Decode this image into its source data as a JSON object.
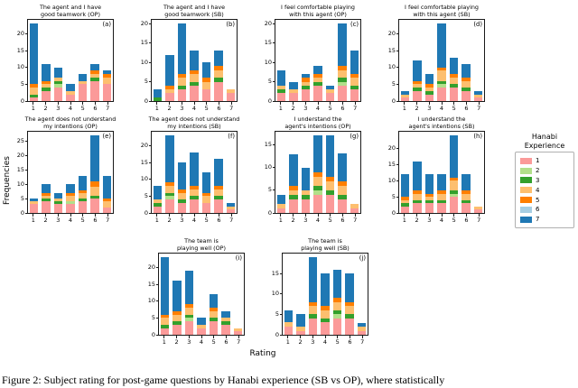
{
  "caption": "Figure 2: Subject rating for post-game questions by Hanabi experience (SB vs OP), where statistically",
  "legend": {
    "title": "Hanabi Experience",
    "entries": [
      {
        "label": "1",
        "color": "#fb9a99"
      },
      {
        "label": "2",
        "color": "#b2df8a"
      },
      {
        "label": "3",
        "color": "#33a02c"
      },
      {
        "label": "4",
        "color": "#fdbf6f"
      },
      {
        "label": "5",
        "color": "#ff7f00"
      },
      {
        "label": "6",
        "color": "#a6cee3"
      },
      {
        "label": "7",
        "color": "#1f78b4"
      }
    ]
  },
  "chart_data": {
    "type": "bar",
    "stacked": true,
    "xlabel": "Rating",
    "ylabel": "Frequencies",
    "legend_title": "Hanabi Experience",
    "legend_position": "right",
    "x_categories": [
      "1",
      "2",
      "3",
      "4",
      "5",
      "6",
      "7"
    ],
    "subplots": [
      {
        "panel": "(a)",
        "row": 1,
        "title": "The agent and I have\ngood teamwork (OP)",
        "series": [
          {
            "name": "1",
            "values": [
              1,
              3,
              4,
              2,
              5,
              6,
              5
            ]
          },
          {
            "name": "2",
            "values": [
              0,
              0,
              1,
              0,
              0,
              0,
              0
            ]
          },
          {
            "name": "3",
            "values": [
              1,
              1,
              1,
              0,
              0,
              1,
              0
            ]
          },
          {
            "name": "4",
            "values": [
              2,
              1,
              1,
              1,
              1,
              1,
              2
            ]
          },
          {
            "name": "5",
            "values": [
              1,
              1,
              0,
              0,
              0,
              1,
              1
            ]
          },
          {
            "name": "6",
            "values": [
              0,
              0,
              0,
              0,
              0,
              0,
              0
            ]
          },
          {
            "name": "7",
            "values": [
              18,
              5,
              3,
              2,
              2,
              2,
              1
            ]
          }
        ]
      },
      {
        "panel": "(b)",
        "row": 1,
        "title": "The agent and I have\ngood teamwork (SB)",
        "series": [
          {
            "name": "1",
            "values": [
              0,
              2,
              3,
              4,
              3,
              5,
              2
            ]
          },
          {
            "name": "2",
            "values": [
              0,
              0,
              0,
              0,
              0,
              0,
              0
            ]
          },
          {
            "name": "3",
            "values": [
              1,
              0,
              1,
              1,
              0,
              1,
              0
            ]
          },
          {
            "name": "4",
            "values": [
              0,
              1,
              2,
              2,
              2,
              2,
              1
            ]
          },
          {
            "name": "5",
            "values": [
              0,
              1,
              1,
              1,
              1,
              1,
              0
            ]
          },
          {
            "name": "6",
            "values": [
              0,
              0,
              0,
              0,
              0,
              0,
              0
            ]
          },
          {
            "name": "7",
            "values": [
              2,
              8,
              13,
              5,
              4,
              4,
              0
            ]
          }
        ]
      },
      {
        "panel": "(c)",
        "row": 1,
        "title": "I feel comfortable playing\nwith this agent (OP)",
        "series": [
          {
            "name": "1",
            "values": [
              2,
              2,
              3,
              4,
              2,
              4,
              3
            ]
          },
          {
            "name": "2",
            "values": [
              0,
              0,
              0,
              0,
              0,
              1,
              0
            ]
          },
          {
            "name": "3",
            "values": [
              1,
              0,
              1,
              1,
              0,
              1,
              1
            ]
          },
          {
            "name": "4",
            "values": [
              1,
              1,
              1,
              1,
              1,
              2,
              2
            ]
          },
          {
            "name": "5",
            "values": [
              0,
              0,
              1,
              1,
              0,
              1,
              1
            ]
          },
          {
            "name": "6",
            "values": [
              0,
              0,
              0,
              0,
              0,
              0,
              0
            ]
          },
          {
            "name": "7",
            "values": [
              4,
              2,
              1,
              2,
              1,
              11,
              6
            ]
          }
        ]
      },
      {
        "panel": "(d)",
        "row": 1,
        "title": "I feel comfortable playing\nwith this agent (SB)",
        "series": [
          {
            "name": "1",
            "values": [
              1,
              3,
              2,
              4,
              4,
              3,
              1
            ]
          },
          {
            "name": "2",
            "values": [
              0,
              0,
              0,
              1,
              0,
              0,
              0
            ]
          },
          {
            "name": "3",
            "values": [
              0,
              1,
              1,
              1,
              1,
              1,
              0
            ]
          },
          {
            "name": "4",
            "values": [
              1,
              1,
              1,
              3,
              2,
              2,
              1
            ]
          },
          {
            "name": "5",
            "values": [
              0,
              1,
              1,
              1,
              1,
              1,
              0
            ]
          },
          {
            "name": "6",
            "values": [
              0,
              0,
              0,
              0,
              0,
              0,
              0
            ]
          },
          {
            "name": "7",
            "values": [
              1,
              6,
              3,
              13,
              5,
              4,
              1
            ]
          }
        ]
      },
      {
        "panel": "(e)",
        "row": 2,
        "title": "The agent does not understand\nmy intentions (OP)",
        "series": [
          {
            "name": "1",
            "values": [
              3,
              4,
              3,
              3,
              4,
              5,
              2
            ]
          },
          {
            "name": "2",
            "values": [
              0,
              0,
              0,
              1,
              0,
              0,
              0
            ]
          },
          {
            "name": "3",
            "values": [
              0,
              1,
              1,
              0,
              1,
              1,
              0
            ]
          },
          {
            "name": "4",
            "values": [
              1,
              1,
              1,
              2,
              2,
              3,
              2
            ]
          },
          {
            "name": "5",
            "values": [
              0,
              1,
              0,
              1,
              1,
              2,
              1
            ]
          },
          {
            "name": "6",
            "values": [
              0,
              0,
              0,
              0,
              0,
              0,
              0
            ]
          },
          {
            "name": "7",
            "values": [
              1,
              3,
              2,
              3,
              5,
              16,
              8
            ]
          }
        ]
      },
      {
        "panel": "(f)",
        "row": 2,
        "title": "The agent does not understand\nmy intentions (SB)",
        "series": [
          {
            "name": "1",
            "values": [
              2,
              4,
              3,
              4,
              3,
              4,
              1
            ]
          },
          {
            "name": "2",
            "values": [
              0,
              1,
              0,
              0,
              0,
              0,
              0
            ]
          },
          {
            "name": "3",
            "values": [
              1,
              1,
              1,
              1,
              0,
              1,
              0
            ]
          },
          {
            "name": "4",
            "values": [
              1,
              2,
              2,
              2,
              2,
              2,
              1
            ]
          },
          {
            "name": "5",
            "values": [
              0,
              1,
              1,
              1,
              1,
              1,
              0
            ]
          },
          {
            "name": "6",
            "values": [
              0,
              0,
              0,
              0,
              0,
              0,
              0
            ]
          },
          {
            "name": "7",
            "values": [
              4,
              14,
              8,
              10,
              6,
              8,
              1
            ]
          }
        ]
      },
      {
        "panel": "(g)",
        "row": 2,
        "title": "I understand the\nagent's intentions (OP)",
        "series": [
          {
            "name": "1",
            "values": [
              1,
              3,
              3,
              4,
              4,
              3,
              1
            ]
          },
          {
            "name": "2",
            "values": [
              0,
              0,
              0,
              1,
              0,
              0,
              0
            ]
          },
          {
            "name": "3",
            "values": [
              0,
              1,
              1,
              1,
              1,
              1,
              0
            ]
          },
          {
            "name": "4",
            "values": [
              1,
              1,
              1,
              2,
              2,
              2,
              1
            ]
          },
          {
            "name": "5",
            "values": [
              0,
              1,
              0,
              1,
              1,
              1,
              0
            ]
          },
          {
            "name": "6",
            "values": [
              0,
              0,
              0,
              0,
              0,
              0,
              0
            ]
          },
          {
            "name": "7",
            "values": [
              2,
              7,
              5,
              8,
              9,
              6,
              0
            ]
          }
        ]
      },
      {
        "panel": "(h)",
        "row": 2,
        "title": "I understand the\nagent's intentions (SB)",
        "series": [
          {
            "name": "1",
            "values": [
              2,
              3,
              3,
              3,
              5,
              3,
              1
            ]
          },
          {
            "name": "2",
            "values": [
              0,
              0,
              0,
              0,
              1,
              0,
              0
            ]
          },
          {
            "name": "3",
            "values": [
              1,
              1,
              1,
              1,
              1,
              1,
              0
            ]
          },
          {
            "name": "4",
            "values": [
              1,
              2,
              1,
              2,
              3,
              2,
              1
            ]
          },
          {
            "name": "5",
            "values": [
              1,
              1,
              1,
              1,
              1,
              1,
              0
            ]
          },
          {
            "name": "6",
            "values": [
              0,
              0,
              0,
              0,
              0,
              0,
              0
            ]
          },
          {
            "name": "7",
            "values": [
              7,
              9,
              6,
              5,
              13,
              5,
              0
            ]
          }
        ]
      },
      {
        "panel": "(i)",
        "row": 3,
        "title": "The team is\nplaying well (OP)",
        "series": [
          {
            "name": "1",
            "values": [
              2,
              3,
              4,
              2,
              4,
              3,
              1
            ]
          },
          {
            "name": "2",
            "values": [
              0,
              0,
              1,
              0,
              0,
              0,
              0
            ]
          },
          {
            "name": "3",
            "values": [
              1,
              1,
              1,
              0,
              1,
              1,
              0
            ]
          },
          {
            "name": "4",
            "values": [
              2,
              2,
              2,
              1,
              2,
              1,
              1
            ]
          },
          {
            "name": "5",
            "values": [
              1,
              1,
              1,
              0,
              1,
              0,
              0
            ]
          },
          {
            "name": "6",
            "values": [
              0,
              0,
              0,
              0,
              0,
              0,
              0
            ]
          },
          {
            "name": "7",
            "values": [
              17,
              9,
              10,
              2,
              4,
              2,
              0
            ]
          }
        ]
      },
      {
        "panel": "(j)",
        "row": 3,
        "title": "The team is\nplaying well (SB)",
        "series": [
          {
            "name": "1",
            "values": [
              2,
              1,
              4,
              3,
              4,
              4,
              1
            ]
          },
          {
            "name": "2",
            "values": [
              0,
              0,
              0,
              0,
              1,
              0,
              0
            ]
          },
          {
            "name": "3",
            "values": [
              0,
              0,
              1,
              1,
              1,
              1,
              0
            ]
          },
          {
            "name": "4",
            "values": [
              1,
              1,
              2,
              2,
              2,
              2,
              1
            ]
          },
          {
            "name": "5",
            "values": [
              0,
              0,
              1,
              1,
              1,
              1,
              0
            ]
          },
          {
            "name": "6",
            "values": [
              0,
              0,
              0,
              0,
              0,
              0,
              0
            ]
          },
          {
            "name": "7",
            "values": [
              3,
              3,
              11,
              8,
              7,
              7,
              1
            ]
          }
        ]
      }
    ]
  }
}
